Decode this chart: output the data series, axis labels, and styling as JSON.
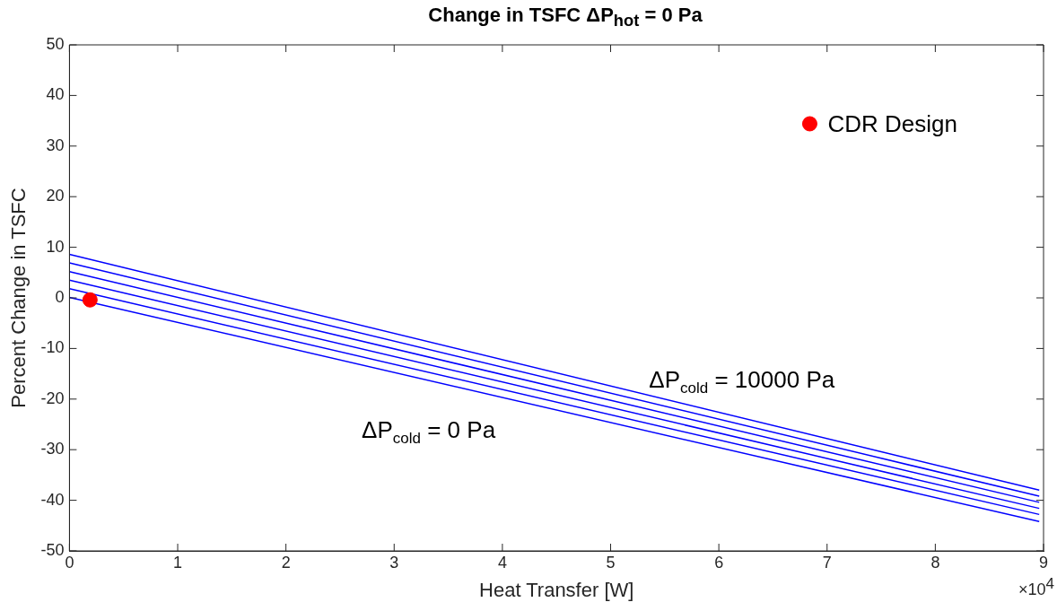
{
  "chart_data": {
    "type": "line",
    "title": "Change in TSFC ΔP$_{hot}$ = 0 Pa",
    "xlabel": "Heat Transfer [W]",
    "ylabel": "Percent Change in TSFC",
    "xlim": [
      0,
      9
    ],
    "ylim": [
      -50,
      50
    ],
    "xticks": [
      0,
      1,
      2,
      3,
      4,
      5,
      6,
      7,
      8,
      9
    ],
    "yticks": [
      -50,
      -40,
      -30,
      -20,
      -10,
      0,
      10,
      20,
      30,
      40,
      50
    ],
    "grid": false,
    "legend": false,
    "marker": "none",
    "line_style": "solid",
    "series": [
      {
        "color": "#0000ff",
        "x": [
          0,
          8.96
        ],
        "values": [
          8.6,
          -38
        ]
      },
      {
        "color": "#0000ff",
        "x": [
          0,
          8.96
        ],
        "values": [
          6.9,
          -39.2
        ]
      },
      {
        "color": "#0000ff",
        "x": [
          0,
          8.96
        ],
        "values": [
          5.2,
          -40.4
        ]
      },
      {
        "color": "#0000ff",
        "x": [
          0,
          8.96
        ],
        "values": [
          3.5,
          -41.6
        ]
      },
      {
        "color": "#0000ff",
        "x": [
          0,
          8.96
        ],
        "values": [
          1.8,
          -42.8
        ]
      },
      {
        "color": "#0000ff",
        "x": [
          0,
          8.96
        ],
        "values": [
          0.1,
          -44.2
        ]
      },
      {
        "type": "scatter",
        "color": "#ff0000",
        "marker": "circle",
        "x": [
          0.19,
          6.84
        ],
        "values": [
          -0.4,
          34.4
        ]
      }
    ],
    "annotations": [
      "ΔP$_{cold}$ = 10000 Pa",
      "ΔP$_{cold}$ = 0 Pa",
      {
        "text": "CDR Design",
        "x": 6.84,
        "y": 34.4
      },
      "×10$^{4}$"
    ]
  }
}
